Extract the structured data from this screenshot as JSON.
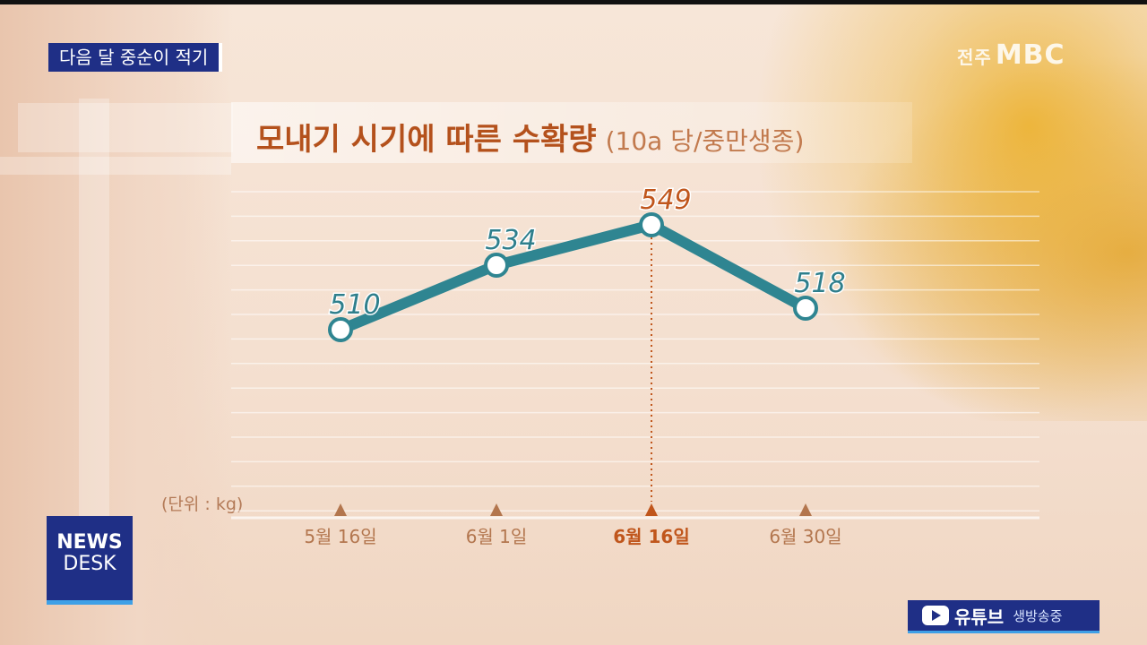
{
  "caption": "다음 달 중순이 적기",
  "broadcaster": {
    "region": "전주",
    "name": "MBC"
  },
  "chart_data": {
    "type": "line",
    "title": "모내기 시기에 따른 수확량",
    "subtitle": "(10a 당/중만생종)",
    "unit_label": "(단위 : kg)",
    "categories": [
      "5월 16일",
      "6월 1일",
      "6월 16일",
      "6월 30일"
    ],
    "values": [
      510,
      534,
      549,
      518
    ],
    "highlight_index": 2,
    "ylim": [
      440,
      570
    ],
    "grid": true,
    "colors": {
      "line": "#2f8591",
      "highlight": "#c0561c",
      "label": "#2f7f8c",
      "tick": "#b3764e"
    }
  },
  "news_desk": {
    "line1": "NEWS",
    "line2": "DESK"
  },
  "youtube": {
    "label": "유튜브",
    "status": "생방송중"
  }
}
